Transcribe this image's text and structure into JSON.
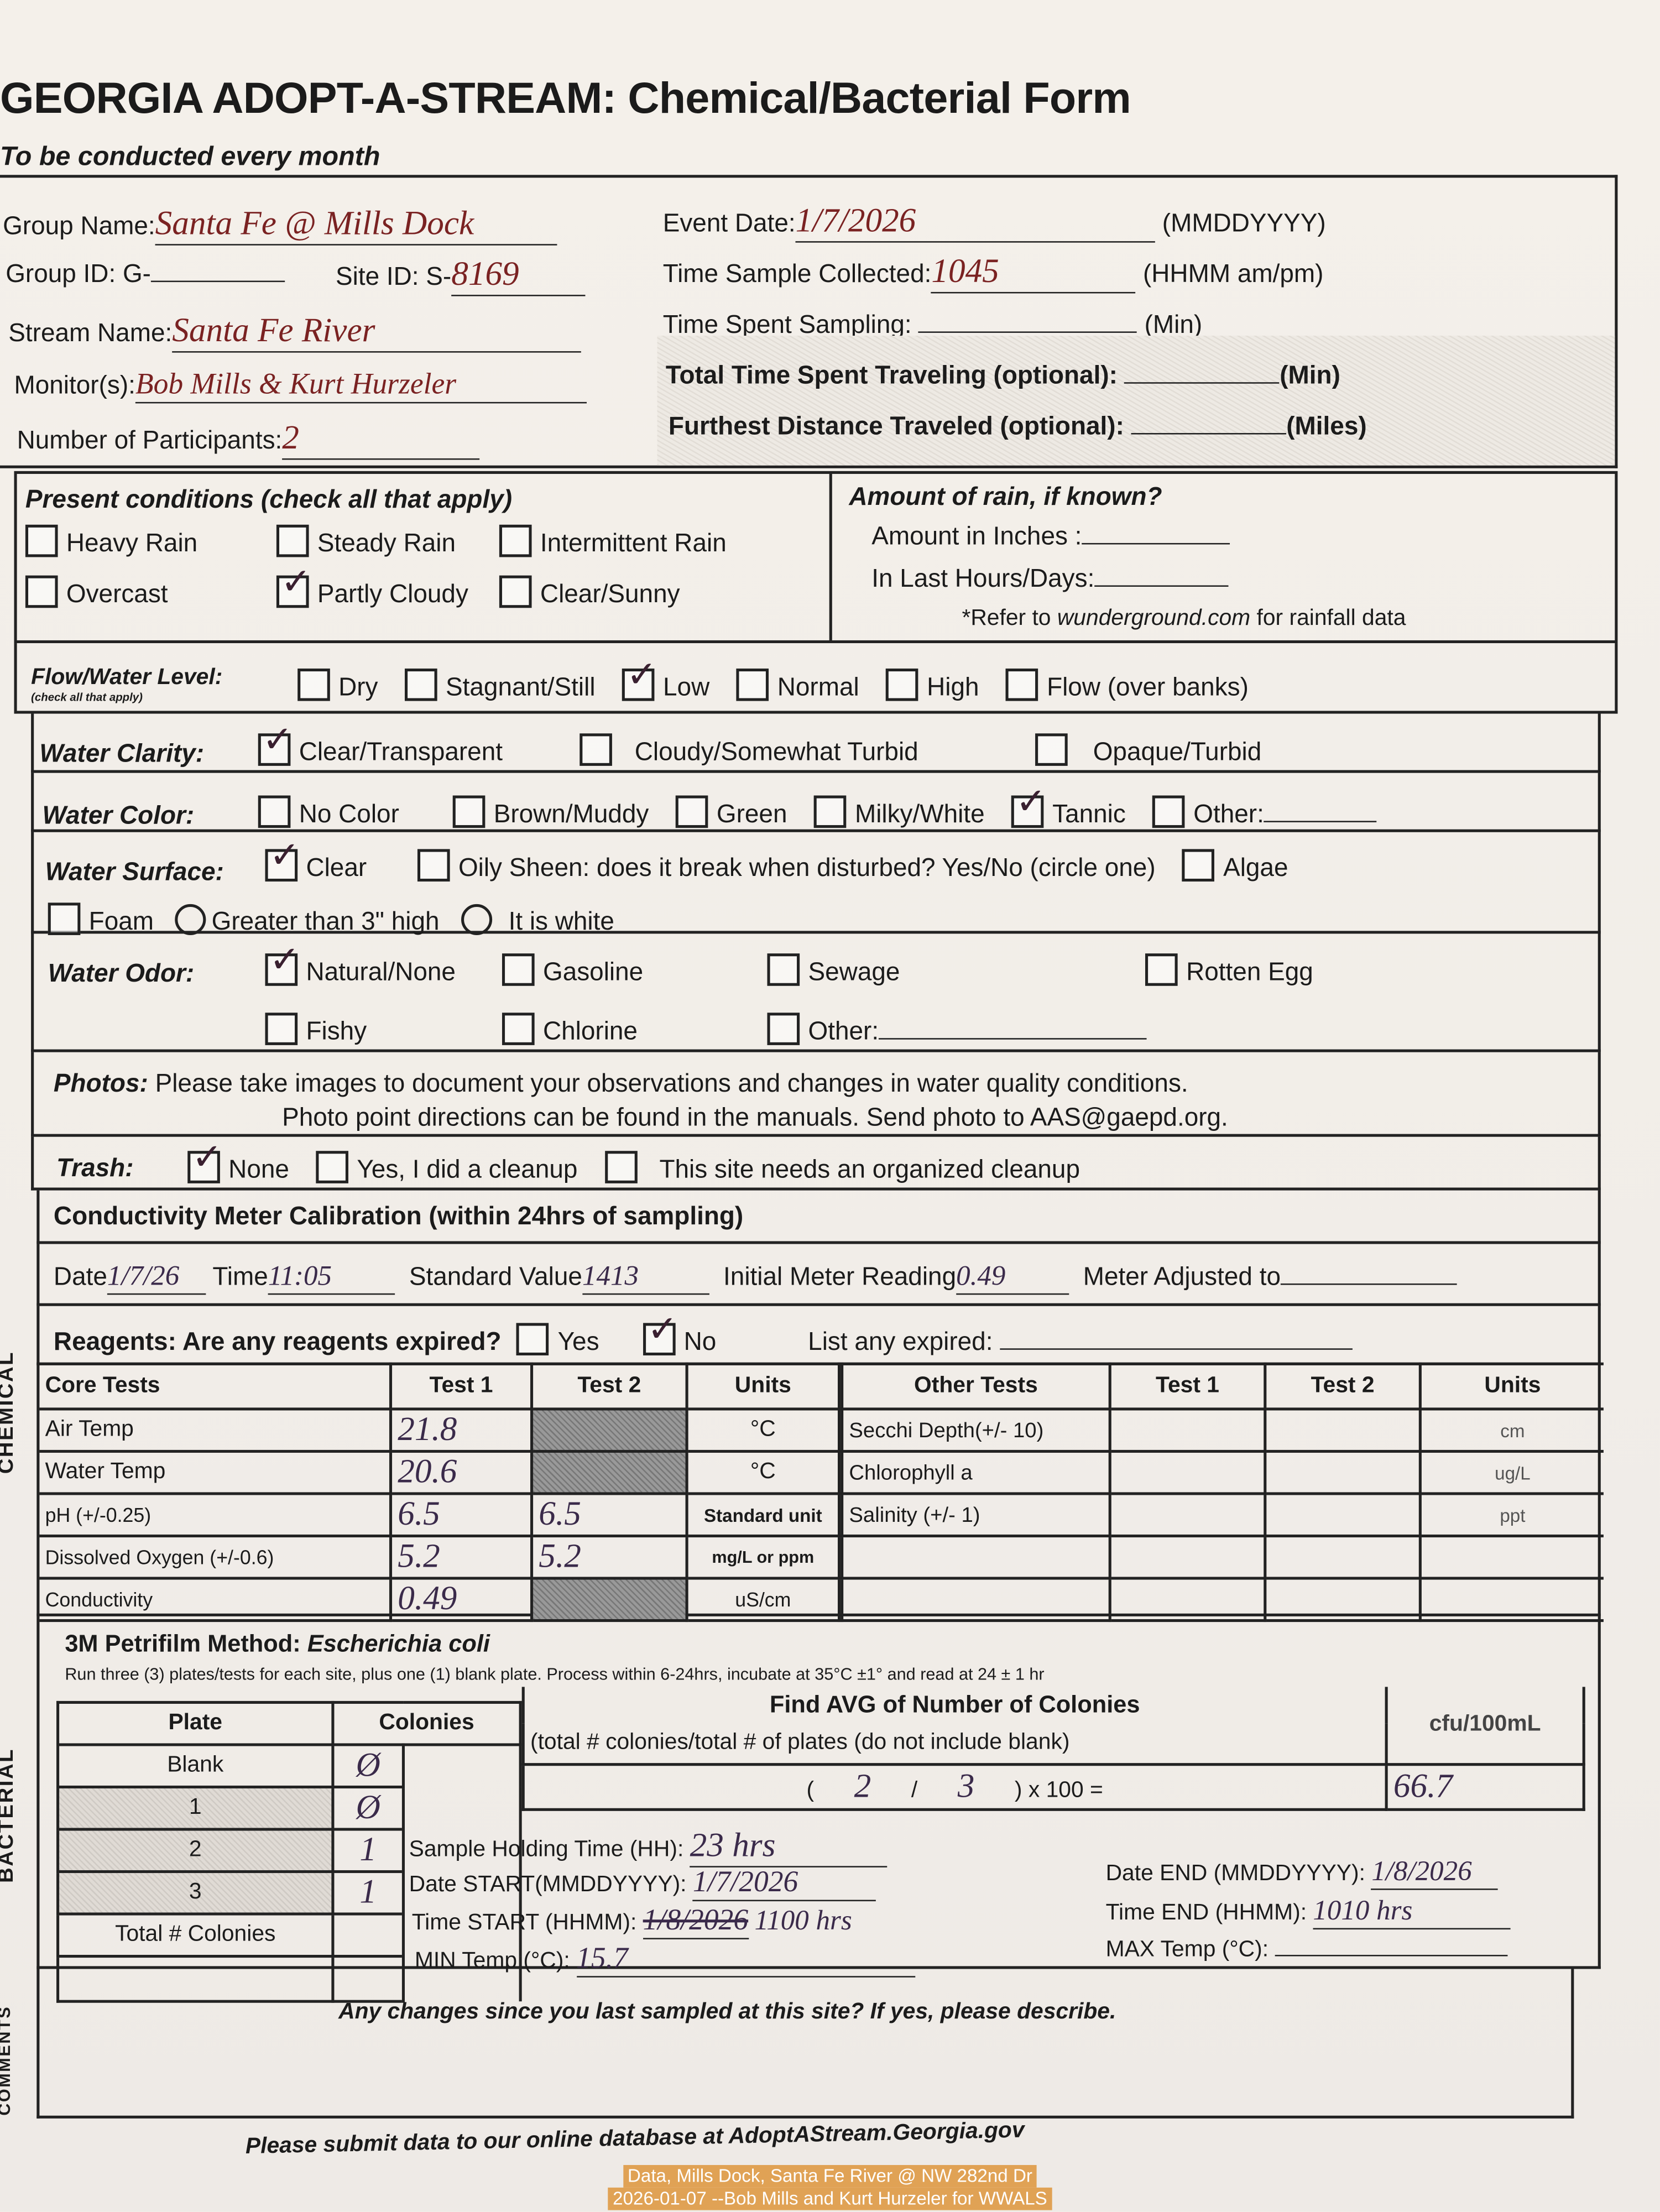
{
  "title": "GEORGIA ADOPT-A-STREAM: Chemical/Bacterial Form",
  "subtitle": "To be conducted every month",
  "header": {
    "group_name_label": "Group Name:",
    "group_name": "Santa Fe @ Mills Dock",
    "group_id_label": "Group ID: G-",
    "group_id": "",
    "site_id_label": "Site ID: S-",
    "site_id": "8169",
    "stream_name_label": "Stream Name:",
    "stream_name": "Santa Fe River",
    "monitors_label": "Monitor(s):",
    "monitors": "Bob Mills & Kurt Hurzeler",
    "participants_label": "Number of Participants:",
    "participants": "2",
    "event_date_label": "Event Date:",
    "event_date": "1/7/2026",
    "event_date_fmt": "(MMDDYYYY)",
    "time_collected_label": "Time Sample Collected:",
    "time_collected": "1045",
    "time_fmt": "(HHMM am/pm)",
    "ampm_circled": "am",
    "time_sampling_label": "Time Spent Sampling:",
    "time_sampling": "",
    "min_unit": "(Min)",
    "travel_time_label": "Total Time Spent Traveling (optional):",
    "travel_time": "",
    "distance_label": "Furthest Distance Traveled (optional):",
    "distance": "",
    "miles_unit": "(Miles)"
  },
  "conditions": {
    "title": "Present conditions (check all that apply)",
    "items": [
      {
        "label": "Heavy Rain",
        "checked": false
      },
      {
        "label": "Steady Rain",
        "checked": false
      },
      {
        "label": "Intermittent Rain",
        "checked": false
      },
      {
        "label": "Overcast",
        "checked": false
      },
      {
        "label": "Partly Cloudy",
        "checked": true
      },
      {
        "label": "Clear/Sunny",
        "checked": false
      }
    ],
    "rain_title": "Amount of rain, if known?",
    "rain_inches_label": "Amount in Inches :",
    "rain_hours_label": "In Last Hours/Days:",
    "rain_note_pre": "*Refer to ",
    "rain_note_site": "wunderground.com",
    "rain_note_post": " for rainfall data"
  },
  "flow": {
    "label": "Flow/Water Level:",
    "sublabel": "(check all that apply)",
    "items": [
      {
        "label": "Dry",
        "checked": false
      },
      {
        "label": "Stagnant/Still",
        "checked": false
      },
      {
        "label": "Low",
        "checked": true
      },
      {
        "label": "Normal",
        "checked": false
      },
      {
        "label": "High",
        "checked": false
      },
      {
        "label": "Flow (over banks)",
        "checked": false
      }
    ]
  },
  "clarity": {
    "label": "Water Clarity:",
    "items": [
      {
        "label": "Clear/Transparent",
        "checked": true
      },
      {
        "label": "Cloudy/Somewhat Turbid",
        "checked": false
      },
      {
        "label": "Opaque/Turbid",
        "checked": false
      }
    ]
  },
  "color": {
    "label": "Water Color:",
    "items": [
      {
        "label": "No Color",
        "checked": false
      },
      {
        "label": "Brown/Muddy",
        "checked": false
      },
      {
        "label": "Green",
        "checked": false
      },
      {
        "label": "Milky/White",
        "checked": false
      },
      {
        "label": "Tannic",
        "checked": true
      },
      {
        "label": "Other:",
        "checked": false
      }
    ]
  },
  "surface": {
    "label": "Water Surface:",
    "items": [
      {
        "label": "Clear",
        "checked": true
      },
      {
        "label": "Oily Sheen: does it break when disturbed? Yes/No (circle one)",
        "checked": false
      },
      {
        "label": "Algae",
        "checked": false
      },
      {
        "label": "Foam",
        "checked": false
      }
    ],
    "radios": [
      {
        "label": "Greater than 3\" high",
        "checked": false
      },
      {
        "label": "It is white",
        "checked": false
      }
    ]
  },
  "odor": {
    "label": "Water Odor:",
    "items": [
      {
        "label": "Natural/None",
        "checked": true
      },
      {
        "label": "Gasoline",
        "checked": false
      },
      {
        "label": "Sewage",
        "checked": false
      },
      {
        "label": "Rotten Egg",
        "checked": false
      },
      {
        "label": "Fishy",
        "checked": false
      },
      {
        "label": "Chlorine",
        "checked": false
      },
      {
        "label": "Other:",
        "checked": false
      }
    ]
  },
  "photos": {
    "label": "Photos:",
    "line1": "Please take images to document your observations and changes in water quality conditions.",
    "line2": "Photo point directions can be found in the manuals. Send photo to AAS@gaepd.org."
  },
  "trash": {
    "label": "Trash:",
    "items": [
      {
        "label": "None",
        "checked": true
      },
      {
        "label": "Yes, I did a cleanup",
        "checked": false
      },
      {
        "label": "This site needs an organized cleanup",
        "checked": false
      }
    ]
  },
  "calibration": {
    "title": "Conductivity Meter Calibration (within 24hrs of sampling)",
    "date_label": "Date",
    "date": "1/7/26",
    "time_label": "Time",
    "time": "11:05",
    "standard_label": "Standard Value",
    "standard": "1413",
    "initial_label": "Initial Meter Reading",
    "initial": "0.49",
    "adjusted_label": "Meter Adjusted to",
    "adjusted": ""
  },
  "reagents": {
    "label": "Reagents: Are any reagents expired?",
    "yes": "Yes",
    "yes_checked": false,
    "no": "No",
    "no_checked": true,
    "list_label": "List any expired:"
  },
  "core_tests": {
    "headers": [
      "Core Tests",
      "Test 1",
      "Test 2",
      "Units"
    ],
    "rows": [
      {
        "name": "Air Temp",
        "t1": "21.8",
        "t2": "",
        "unit": "°C",
        "t2_shaded": true
      },
      {
        "name": "Water Temp",
        "t1": "20.6",
        "t2": "",
        "unit": "°C",
        "t2_shaded": true
      },
      {
        "name": "pH (+/-0.25)",
        "t1": "6.5",
        "t2": "6.5",
        "unit": "Standard unit",
        "t2_shaded": false
      },
      {
        "name": "Dissolved Oxygen (+/-0.6)",
        "t1": "5.2",
        "t2": "5.2",
        "unit": "mg/L or ppm",
        "t2_shaded": false
      },
      {
        "name": "Conductivity",
        "t1": "0.49",
        "t2": "",
        "unit": "uS/cm",
        "t2_shaded": true
      }
    ]
  },
  "other_tests": {
    "headers": [
      "Other Tests",
      "Test 1",
      "Test 2",
      "Units"
    ],
    "rows": [
      {
        "name": "Secchi Depth(+/- 10)",
        "t1": "",
        "t2": "",
        "unit": "cm"
      },
      {
        "name": "Chlorophyll a",
        "t1": "",
        "t2": "",
        "unit": "ug/L"
      },
      {
        "name": "Salinity (+/- 1)",
        "t1": "",
        "t2": "",
        "unit": "ppt"
      },
      {
        "name": "",
        "t1": "",
        "t2": "",
        "unit": ""
      },
      {
        "name": "",
        "t1": "",
        "t2": "",
        "unit": ""
      }
    ]
  },
  "bacterial": {
    "title_pre": "3M Petrifilm Method: ",
    "title_species": "Escherichia coli",
    "instructions": "Run three (3) plates/tests for each site, plus one (1) blank plate. Process within 6-24hrs, incubate at 35°C ±1° and read at 24 ± 1 hr",
    "plate_header": "Plate",
    "colonies_header": "Colonies",
    "plates": [
      {
        "plate": "Blank",
        "colonies": "Ø"
      },
      {
        "plate": "1",
        "colonies": "Ø"
      },
      {
        "plate": "2",
        "colonies": "1"
      },
      {
        "plate": "3",
        "colonies": "1"
      }
    ],
    "total_label": "Total # Colonies",
    "total": "",
    "avg_title": "Find AVG of Number of Colonies",
    "avg_sub": "(total # colonies/total # of plates (do not include blank)",
    "avg_numerator": "2",
    "avg_denominator": "3",
    "avg_mult": ") x 100 =",
    "cfu_header": "cfu/100mL",
    "cfu": "66.7",
    "holding_label": "Sample Holding Time (HH):",
    "holding": "23 hrs",
    "date_start_label": "Date START(MMDDYYYY):",
    "date_start": "1/7/2026",
    "time_start_label": "Time START (HHMM):",
    "time_start_struck": "1/8/2026",
    "time_start": "1100 hrs",
    "min_temp_label": "MIN Temp (°C):",
    "min_temp": "15.7",
    "date_end_label": "Date END (MMDDYYYY):",
    "date_end": "1/8/2026",
    "time_end_label": "Time END (HHMM):",
    "time_end": "1010 hrs",
    "max_temp_label": "MAX Temp (°C):",
    "max_temp": ""
  },
  "comments": {
    "prompt": "Any changes since you last sampled at this site? If yes, please describe.",
    "text": ""
  },
  "side_labels": {
    "chemical": "CHEMICAL",
    "bacterial": "BACTERIAL",
    "comments": "COMMENTS"
  },
  "footer": "Please submit data to our online database at AdoptAStream.Georgia.gov",
  "caption": {
    "line1": "Data, Mills Dock, Santa Fe River @ NW 282nd Dr",
    "line2": "2026-01-07 --Bob Mills and Kurt Hurzeler for WWALS"
  }
}
